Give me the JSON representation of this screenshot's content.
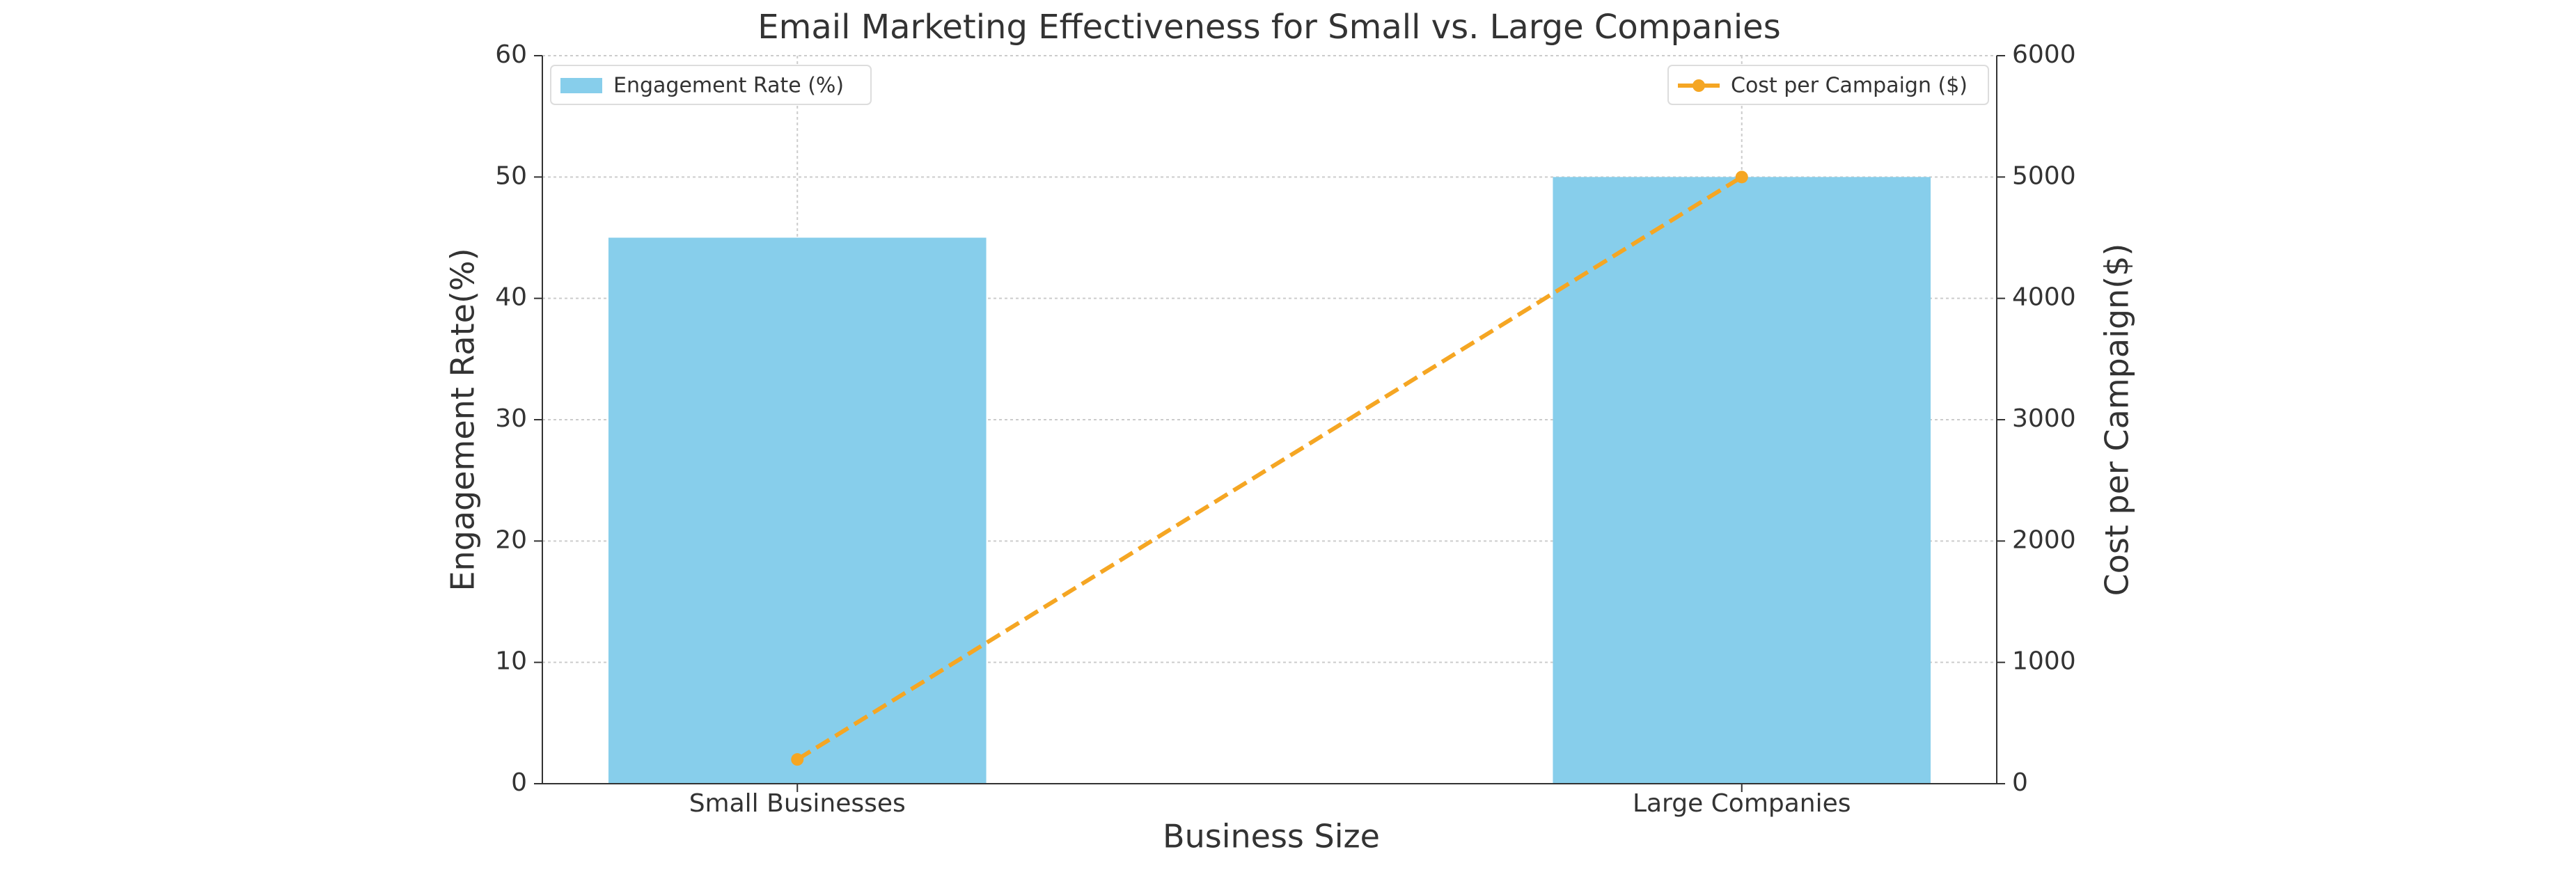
{
  "chart_data": {
    "type": "bar-line",
    "title": "Email Marketing Effectiveness for Small vs. Large Companies",
    "x_label": "Business Size",
    "y_label": "Engagement Rate(%)",
    "y2_label": "Cost per Campaign($)",
    "categories": [
      "Small Businesses",
      "Large Companies"
    ],
    "series": [
      {
        "name": "Engagement Rate (%)",
        "type": "bar",
        "color": "#87ceeb",
        "values": [
          45,
          50
        ]
      },
      {
        "name": "Cost per Campaign ($)",
        "type": "line",
        "axis": "y2",
        "color": "#f5a623",
        "values": [
          200,
          5000
        ]
      }
    ],
    "ylim": [
      0,
      60
    ],
    "yticks": [
      0,
      10,
      20,
      30,
      40,
      50,
      60
    ],
    "y2lim": [
      0,
      6000
    ],
    "y2ticks": [
      0,
      1000,
      2000,
      3000,
      4000,
      5000,
      6000
    ],
    "grid": true
  }
}
